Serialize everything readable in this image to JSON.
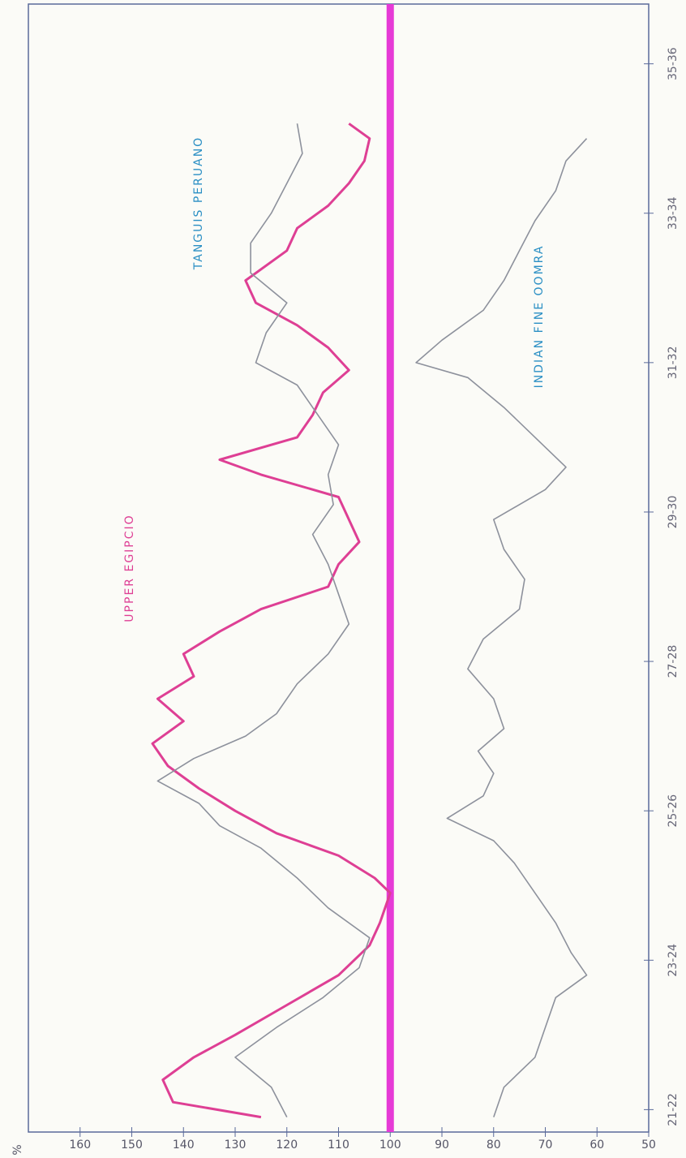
{
  "chart_data": {
    "type": "line",
    "ylabel": "%",
    "xlim": [
      21.2,
      36.3
    ],
    "xticks": [
      {
        "value": 21.5,
        "label": "21-22"
      },
      {
        "value": 23.5,
        "label": "23-24"
      },
      {
        "value": 25.5,
        "label": "25-26"
      },
      {
        "value": 27.5,
        "label": "27-28"
      },
      {
        "value": 29.5,
        "label": "29-30"
      },
      {
        "value": 31.5,
        "label": "31-32"
      },
      {
        "value": 33.5,
        "label": "33-34"
      },
      {
        "value": 35.5,
        "label": "35-36"
      }
    ],
    "ylim": [
      50,
      170
    ],
    "yticks": [
      50,
      60,
      70,
      80,
      90,
      100,
      110,
      120,
      130,
      140,
      150,
      160
    ],
    "refline": 100,
    "refline_color": "#e63ad6",
    "grid": false,
    "series": [
      {
        "name": "UPPER EGIPCIO",
        "color": "#de3f94",
        "x": [
          21.4,
          21.6,
          21.9,
          22.2,
          22.5,
          22.9,
          23.3,
          23.7,
          24.0,
          24.4,
          24.6,
          24.9,
          25.2,
          25.5,
          25.8,
          26.1,
          26.4,
          26.7,
          27.0,
          27.3,
          27.6,
          27.9,
          28.2,
          28.5,
          28.8,
          29.1,
          29.4,
          29.7,
          30.0,
          30.2,
          30.5,
          30.8,
          31.1,
          31.4,
          31.7,
          32.0,
          32.3,
          32.6,
          33.0,
          33.3,
          33.6,
          33.9,
          34.2,
          34.5,
          34.7
        ],
        "values": [
          125,
          142,
          144,
          138,
          130,
          120,
          110,
          104,
          102,
          100,
          103,
          110,
          122,
          130,
          137,
          143,
          146,
          140,
          145,
          138,
          140,
          133,
          125,
          112,
          110,
          106,
          108,
          110,
          125,
          133,
          118,
          115,
          113,
          108,
          112,
          118,
          126,
          128,
          120,
          118,
          112,
          108,
          105,
          104,
          108
        ]
      },
      {
        "name": "TANGUIS PERUANO",
        "color": "#8d919c",
        "x": [
          21.4,
          21.8,
          22.2,
          22.6,
          23.0,
          23.4,
          23.8,
          24.2,
          24.6,
          25.0,
          25.3,
          25.6,
          25.9,
          26.2,
          26.5,
          26.8,
          27.2,
          27.6,
          28.0,
          28.4,
          28.8,
          29.2,
          29.6,
          30.0,
          30.4,
          30.8,
          31.2,
          31.5,
          31.9,
          32.3,
          32.7,
          33.1,
          33.5,
          33.9,
          34.3,
          34.7
        ],
        "values": [
          120,
          123,
          130,
          122,
          113,
          106,
          104,
          112,
          118,
          125,
          133,
          137,
          145,
          138,
          128,
          122,
          118,
          112,
          108,
          110,
          112,
          115,
          111,
          112,
          110,
          114,
          118,
          126,
          124,
          120,
          127,
          127,
          123,
          120,
          117,
          118
        ]
      },
      {
        "name": "INDIAN FINE OOMRA",
        "color": "#8d919c",
        "x": [
          21.4,
          21.8,
          22.2,
          22.6,
          23.0,
          23.3,
          23.6,
          24.0,
          24.4,
          24.8,
          25.1,
          25.4,
          25.7,
          26.0,
          26.3,
          26.6,
          27.0,
          27.4,
          27.8,
          28.2,
          28.6,
          29.0,
          29.4,
          29.8,
          30.1,
          30.5,
          30.9,
          31.3,
          31.5,
          31.8,
          32.2,
          32.6,
          33.0,
          33.4,
          33.8,
          34.2,
          34.5
        ],
        "values": [
          80,
          78,
          72,
          70,
          68,
          62,
          65,
          68,
          72,
          76,
          80,
          89,
          82,
          80,
          83,
          78,
          80,
          85,
          82,
          75,
          74,
          78,
          80,
          70,
          66,
          72,
          78,
          85,
          95,
          90,
          82,
          78,
          75,
          72,
          68,
          66,
          62
        ]
      }
    ]
  }
}
